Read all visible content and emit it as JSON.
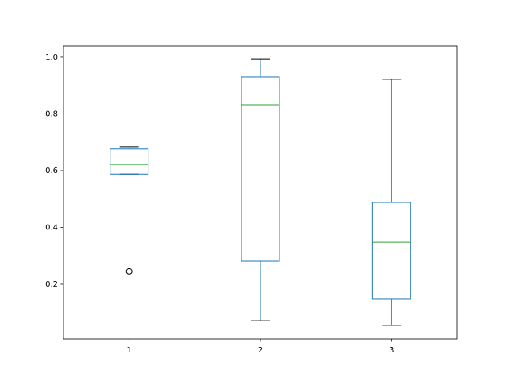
{
  "chart_data": {
    "type": "box",
    "categories": [
      "1",
      "2",
      "3"
    ],
    "boxes": [
      {
        "whislo": 0.588,
        "q1": 0.588,
        "med": 0.622,
        "q3": 0.676,
        "whishi": 0.684,
        "fliers": [
          0.245
        ]
      },
      {
        "whislo": 0.071,
        "q1": 0.281,
        "med": 0.832,
        "q3": 0.93,
        "whishi": 0.994,
        "fliers": []
      },
      {
        "whislo": 0.055,
        "q1": 0.147,
        "med": 0.348,
        "q3": 0.488,
        "whishi": 0.922,
        "fliers": []
      }
    ],
    "box_color": "#1f77b4",
    "median_color": "#2ca02c",
    "cap_color": "#000000",
    "flier_color": "#000000",
    "ylim": [
      0.007,
      1.039
    ],
    "yticks": [
      0.2,
      0.4,
      0.6,
      0.8,
      {
        "value": 1.0,
        "label": "1.0"
      }
    ]
  }
}
